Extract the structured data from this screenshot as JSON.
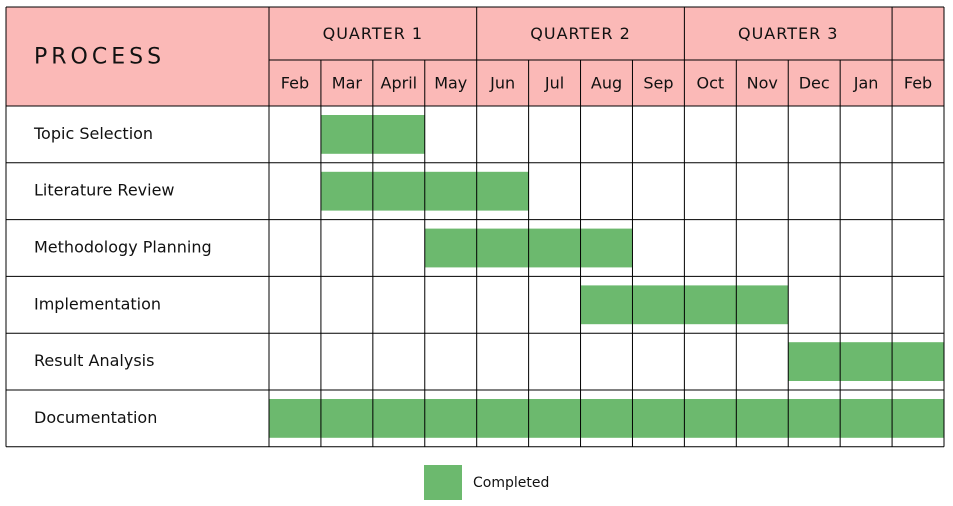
{
  "header": {
    "process_label": "PROCESS",
    "quarters": [
      "QUARTER 1",
      "QUARTER 2",
      "QUARTER 3",
      ""
    ],
    "months": [
      "Feb",
      "Mar",
      "April",
      "May",
      "Jun",
      "Jul",
      "Aug",
      "Sep",
      "Oct",
      "Nov",
      "Dec",
      "Jan",
      "Feb"
    ]
  },
  "colors": {
    "header_fill": "#fbb9b7",
    "bar_fill": "#6cb96e",
    "grid": "#000000"
  },
  "tasks": [
    {
      "name": "Topic Selection",
      "start_month": "Mar",
      "end_month": "April"
    },
    {
      "name": "Literature Review",
      "start_month": "Mar",
      "end_month": "Jun"
    },
    {
      "name": "Methodology Planning",
      "start_month": "May",
      "end_month": "Aug"
    },
    {
      "name": "Implementation",
      "start_month": "Aug",
      "end_month": "Nov"
    },
    {
      "name": "Result Analysis",
      "start_month": "Dec",
      "end_month": "Feb"
    },
    {
      "name": "Documentation",
      "start_month": "Feb",
      "end_month": "Feb"
    }
  ],
  "legend": {
    "completed_label": "Completed"
  }
}
